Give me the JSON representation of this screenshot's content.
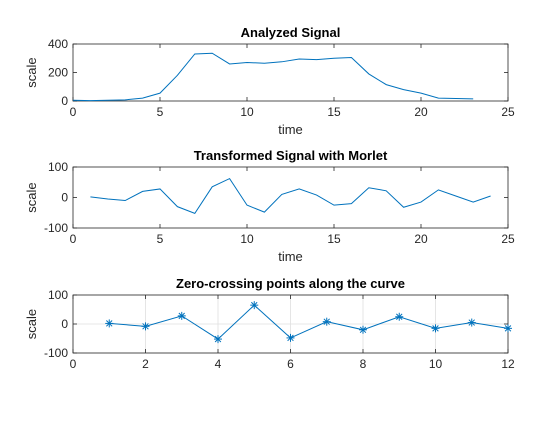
{
  "chart_data": [
    {
      "type": "line",
      "title": "Analyzed Signal",
      "xlabel": "time",
      "ylabel": "scale",
      "xlim": [
        0,
        25
      ],
      "ylim": [
        0,
        400
      ],
      "xticks": [
        0,
        5,
        10,
        15,
        20,
        25
      ],
      "yticks": [
        0,
        200,
        400
      ],
      "grid": false,
      "marker": "none",
      "color": "#0072bd",
      "series": [
        {
          "x": [
            0,
            1,
            2,
            3,
            4,
            5,
            6,
            7,
            8,
            9,
            10,
            11,
            12,
            13,
            14,
            15,
            16,
            17,
            18,
            19,
            20,
            21,
            22,
            23
          ],
          "y": [
            5,
            3,
            5,
            8,
            20,
            55,
            180,
            330,
            335,
            260,
            270,
            265,
            275,
            295,
            290,
            300,
            305,
            190,
            115,
            80,
            55,
            20,
            18,
            15
          ]
        }
      ]
    },
    {
      "type": "line",
      "title": "Transformed Signal with Morlet",
      "xlabel": "time",
      "ylabel": "scale",
      "xlim": [
        0,
        25
      ],
      "ylim": [
        -100,
        100
      ],
      "xticks": [
        0,
        5,
        10,
        15,
        20,
        25
      ],
      "yticks": [
        -100,
        0,
        100
      ],
      "grid": false,
      "marker": "none",
      "color": "#0072bd",
      "series": [
        {
          "x": [
            1,
            2,
            3,
            4,
            5,
            6,
            7,
            8,
            9,
            10,
            11,
            12,
            13,
            14,
            15,
            16,
            17,
            18,
            19,
            20,
            21,
            22,
            23,
            24
          ],
          "y": [
            2,
            -5,
            -10,
            20,
            28,
            -30,
            -52,
            35,
            62,
            -25,
            -48,
            10,
            28,
            8,
            -25,
            -20,
            32,
            22,
            -32,
            -15,
            25,
            5,
            -15,
            5
          ]
        }
      ]
    },
    {
      "type": "line",
      "title": "Zero-crossing points along the curve",
      "xlabel": "",
      "ylabel": "scale",
      "xlim": [
        0,
        12
      ],
      "ylim": [
        -100,
        100
      ],
      "xticks": [
        0,
        2,
        4,
        6,
        8,
        10,
        12
      ],
      "yticks": [
        -100,
        0,
        100
      ],
      "grid": true,
      "marker": "asterisk",
      "color": "#0072bd",
      "series": [
        {
          "x": [
            1,
            2,
            3,
            4,
            5,
            6,
            7,
            8,
            9,
            10,
            11,
            12
          ],
          "y": [
            2,
            -8,
            28,
            -52,
            65,
            -48,
            8,
            -20,
            25,
            -15,
            5,
            -15
          ]
        }
      ]
    }
  ]
}
